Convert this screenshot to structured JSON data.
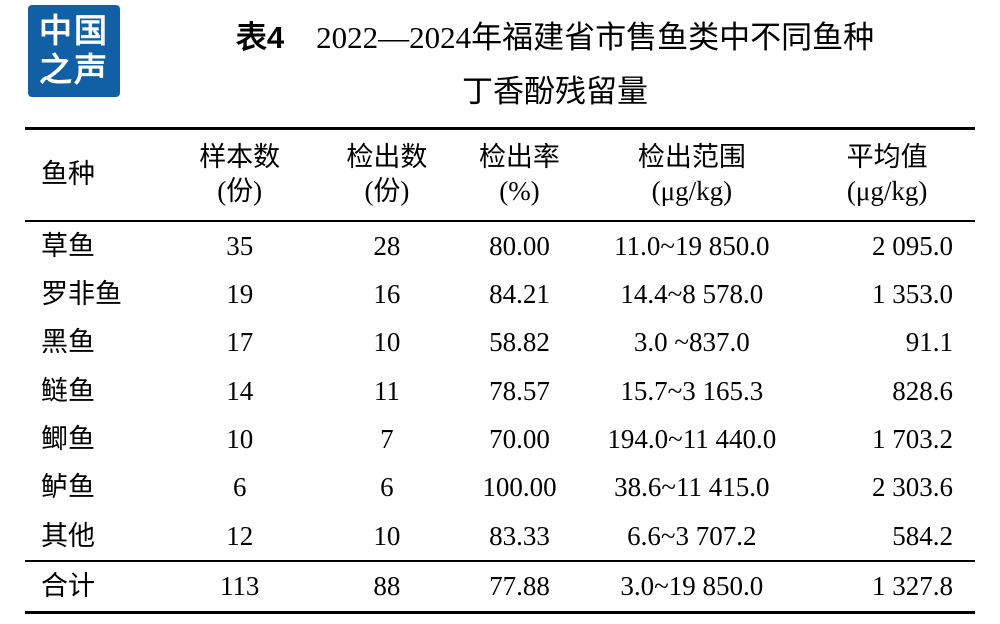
{
  "logo": {
    "line1": "中国",
    "line2": "之声",
    "bg_color": "#1160a6"
  },
  "title": {
    "label": "表4",
    "line1": "2022—2024年福建省市售鱼类中不同鱼种",
    "line2": "丁香酚残留量"
  },
  "table": {
    "headers": [
      {
        "name": "鱼种",
        "unit": ""
      },
      {
        "name": "样本数",
        "unit": "(份)"
      },
      {
        "name": "检出数",
        "unit": "(份)"
      },
      {
        "name": "检出率",
        "unit": "(%)"
      },
      {
        "name": "检出范围",
        "unit": "(μg/kg)"
      },
      {
        "name": "平均值",
        "unit": "(μg/kg)"
      }
    ],
    "rows": [
      [
        "草鱼",
        "35",
        "28",
        "80.00",
        "11.0~19 850.0",
        "2 095.0"
      ],
      [
        "罗非鱼",
        "19",
        "16",
        "84.21",
        "14.4~8 578.0",
        "1 353.0"
      ],
      [
        "黑鱼",
        "17",
        "10",
        "58.82",
        "3.0 ~837.0",
        "91.1"
      ],
      [
        "鲢鱼",
        "14",
        "11",
        "78.57",
        "15.7~3 165.3",
        "828.6"
      ],
      [
        "鲫鱼",
        "10",
        "7",
        "70.00",
        "194.0~11 440.0",
        "1 703.2"
      ],
      [
        "鲈鱼",
        "6",
        "6",
        "100.00",
        "38.6~11 415.0",
        "2 303.6"
      ],
      [
        "其他",
        "12",
        "10",
        "83.33",
        "6.6~3 707.2",
        "584.2"
      ]
    ],
    "total_row": [
      "合计",
      "113",
      "88",
      "77.88",
      "3.0~19 850.0",
      "1 327.8"
    ]
  }
}
